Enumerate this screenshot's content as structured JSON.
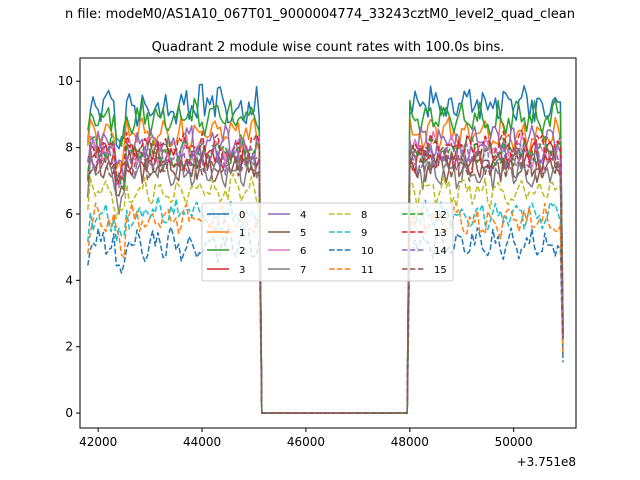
{
  "figure": {
    "suptitle": "n file: modeM0/AS1A10_067T01_9000004774_33243cztM0_level2_quad_clean"
  },
  "chart_data": {
    "type": "line",
    "title": "Quadrant 2 module wise count rates with 100.0s bins.",
    "xlabel": "",
    "ylabel": "",
    "x_offset_label": "+3.751e8",
    "xlim": [
      41650,
      51200
    ],
    "ylim": [
      -0.45,
      10.7
    ],
    "xticks": [
      42000,
      44000,
      46000,
      48000,
      50000
    ],
    "xtick_labels": [
      "42000",
      "44000",
      "46000",
      "48000",
      "50000"
    ],
    "yticks": [
      0,
      2,
      4,
      6,
      8,
      10
    ],
    "ytick_labels": [
      "0",
      "2",
      "4",
      "6",
      "8",
      "10"
    ],
    "grid": false,
    "legend_position": "center",
    "legend_columns": 4,
    "segments": [
      {
        "start": 41800,
        "end": 45100,
        "step": 50
      },
      {
        "start": 48000,
        "end": 50950,
        "step": 50
      }
    ],
    "gap": {
      "start": 45150,
      "end": 47950,
      "value": 0
    },
    "series": [
      {
        "name": "0",
        "level": 9.3,
        "amp": 0.45,
        "color": "#1f77b4",
        "dash": "solid"
      },
      {
        "name": "1",
        "level": 8.4,
        "amp": 0.35,
        "color": "#ff7f0e",
        "dash": "solid"
      },
      {
        "name": "2",
        "level": 8.9,
        "amp": 0.35,
        "color": "#2ca02c",
        "dash": "solid"
      },
      {
        "name": "3",
        "level": 7.7,
        "amp": 0.35,
        "color": "#d62728",
        "dash": "solid"
      },
      {
        "name": "4",
        "level": 8.1,
        "amp": 0.4,
        "color": "#9467bd",
        "dash": "solid"
      },
      {
        "name": "5",
        "level": 7.5,
        "amp": 0.35,
        "color": "#8c564b",
        "dash": "solid"
      },
      {
        "name": "6",
        "level": 7.9,
        "amp": 0.35,
        "color": "#e377c2",
        "dash": "solid"
      },
      {
        "name": "7",
        "level": 7.3,
        "amp": 0.35,
        "color": "#7f7f7f",
        "dash": "solid"
      },
      {
        "name": "8",
        "level": 6.7,
        "amp": 0.3,
        "color": "#bcbd22",
        "dash": "dashed"
      },
      {
        "name": "9",
        "level": 6.0,
        "amp": 0.3,
        "color": "#17becf",
        "dash": "dashed"
      },
      {
        "name": "10",
        "level": 5.1,
        "amp": 0.3,
        "color": "#1f77b4",
        "dash": "dashed"
      },
      {
        "name": "11",
        "level": 5.8,
        "amp": 0.3,
        "color": "#ff7f0e",
        "dash": "dashed"
      },
      {
        "name": "12",
        "level": 7.9,
        "amp": 0.3,
        "color": "#2ca02c",
        "dash": "dashed"
      },
      {
        "name": "13",
        "level": 8.0,
        "amp": 0.3,
        "color": "#d62728",
        "dash": "dashed"
      },
      {
        "name": "14",
        "level": 7.7,
        "amp": 0.3,
        "color": "#9467bd",
        "dash": "dashed"
      },
      {
        "name": "15",
        "level": 7.5,
        "amp": 0.3,
        "color": "#8c564b",
        "dash": "dashed"
      }
    ]
  }
}
